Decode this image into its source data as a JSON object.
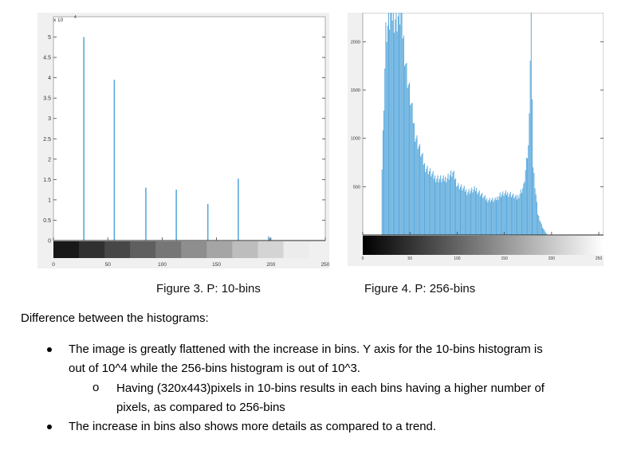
{
  "chart_data": [
    {
      "type": "bar",
      "title": "",
      "xlabel": "",
      "ylabel": "",
      "y_exponent_label": "x 10",
      "y_exponent": "4",
      "xlim": [
        0,
        250
      ],
      "ylim": [
        0,
        5.5
      ],
      "x_tick_labels": [
        "0",
        "50",
        "100",
        "150",
        "200",
        "250"
      ],
      "y_tick_labels": [
        "0",
        "0.5",
        "1",
        "1.5",
        "2",
        "2.5",
        "3",
        "3.5",
        "4",
        "4.5",
        "5"
      ],
      "x": [
        28,
        56,
        85,
        113,
        142,
        170,
        198,
        199
      ],
      "values": [
        5.0,
        3.95,
        1.3,
        1.25,
        0.9,
        1.52,
        0.1,
        0.06
      ],
      "colorbar": "grayscale, 10 levels",
      "grid": false
    },
    {
      "type": "bar",
      "title": "",
      "xlabel": "",
      "ylabel": "",
      "xlim": [
        0,
        255
      ],
      "ylim": [
        0,
        2300
      ],
      "x_tick_labels": [
        "0",
        "50",
        "100",
        "150",
        "200",
        "250"
      ],
      "y_tick_labels": [
        "500",
        "1000",
        "1500",
        "2000"
      ],
      "bins": 256,
      "approximate_profile": {
        "zero_below": 20,
        "peak_region": [
          [
            20,
            700
          ],
          [
            24,
            2100
          ],
          [
            30,
            2300
          ],
          [
            36,
            2250
          ],
          [
            40,
            2300
          ],
          [
            46,
            1700
          ],
          [
            55,
            1050
          ],
          [
            65,
            720
          ],
          [
            75,
            600
          ],
          [
            85,
            570
          ],
          [
            95,
            640
          ],
          [
            100,
            520
          ],
          [
            110,
            450
          ],
          [
            120,
            470
          ],
          [
            130,
            370
          ],
          [
            140,
            360
          ],
          [
            145,
            420
          ],
          [
            155,
            430
          ],
          [
            163,
            380
          ],
          [
            170,
            500
          ],
          [
            175,
            900
          ],
          [
            178,
            2300
          ],
          [
            180,
            700
          ],
          [
            185,
            220
          ],
          [
            190,
            80
          ],
          [
            195,
            0
          ]
        ]
      },
      "colorbar": "grayscale, continuous",
      "grid": false
    }
  ],
  "captions": {
    "fig3": "Figure 3. P: 10-bins",
    "fig4": "Figure 4. P: 256-bins"
  },
  "text": {
    "heading": "Difference between the histograms:",
    "bullet1_line1": "The image is greatly flattened with the increase in bins. Y axis for the 10-bins histogram is",
    "bullet1_line2": "out of 10^4 while the 256-bins histogram is out of 10^3.",
    "sub_marker": "o",
    "sub1_line1": "Having (320x443)pixels in 10-bins results in each bins having a higher number of",
    "sub1_line2": "pixels, as compared to 256-bins",
    "bullet2": "The increase in bins also shows more details as compared to a trend."
  },
  "colors": {
    "bar": "#5aa9dc",
    "figure_background": "#f0f0f0",
    "axes_background": "#ffffff"
  }
}
